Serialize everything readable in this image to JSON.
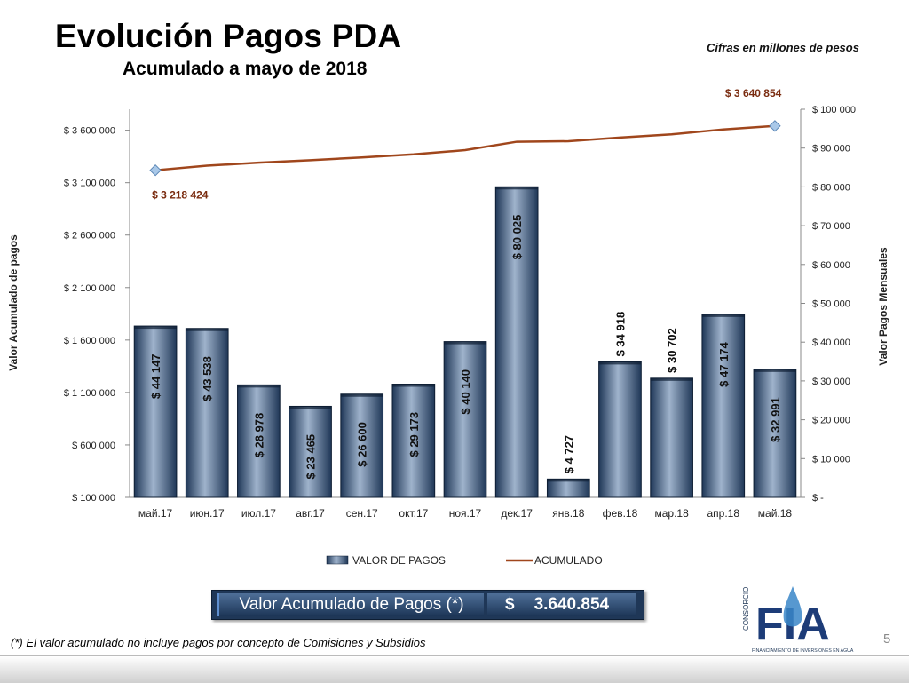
{
  "header": {
    "title": "Evolución Pagos PDA",
    "subtitle": "Acumulado a mayo de 2018",
    "units_note": "Cifras en millones de pesos"
  },
  "chart_data": {
    "type": "bar",
    "categories": [
      "май.17",
      "июн.17",
      "июл.17",
      "авг.17",
      "сен.17",
      "окт.17",
      "ноя.17",
      "дек.17",
      "янв.18",
      "фев.18",
      "мар.18",
      "апр.18",
      "май.18"
    ],
    "series": [
      {
        "name": "VALOR DE PAGOS",
        "type": "bar",
        "axis": "right",
        "values": [
          44147,
          43538,
          28978,
          23465,
          26600,
          29173,
          40140,
          80025,
          4727,
          34918,
          30702,
          47174,
          32991
        ],
        "labels": [
          "$ 44 147",
          "$ 43 538",
          "$ 28 978",
          "$ 23 465",
          "$ 26 600",
          "$ 29 173",
          "$ 40 140",
          "$ 80 025",
          "$ 4 727",
          "$ 34 918",
          "$ 30 702",
          "$ 47 174",
          "$ 32 991"
        ]
      },
      {
        "name": "ACUMULADO",
        "type": "line",
        "axis": "left",
        "values": [
          3218424,
          3261962,
          3290940,
          3314405,
          3341005,
          3370178,
          3410318,
          3490343,
          3495070,
          3529988,
          3560690,
          3607864,
          3640854
        ]
      }
    ],
    "left_axis": {
      "label": "Valor Acumulado de pagos",
      "range": [
        100000,
        3800000
      ],
      "ticks": [
        100000,
        600000,
        1100000,
        1600000,
        2100000,
        2600000,
        3100000,
        3600000
      ],
      "tick_labels": [
        "$ 100 000",
        "$ 600 000",
        "$ 1 100 000",
        "$ 1 600 000",
        "$ 2 100 000",
        "$ 2 600 000",
        "$ 3 100 000",
        "$ 3 600 000"
      ]
    },
    "right_axis": {
      "label": "Valor Pagos Mensuales",
      "range": [
        0,
        100000
      ],
      "ticks": [
        0,
        10000,
        20000,
        30000,
        40000,
        50000,
        60000,
        70000,
        80000,
        90000,
        100000
      ],
      "tick_labels": [
        "$ -",
        "$ 10 000",
        "$ 20 000",
        "$ 30 000",
        "$ 40 000",
        "$ 50 000",
        "$ 60 000",
        "$ 70 000",
        "$ 80 000",
        "$ 90 000",
        "$ 100 000"
      ]
    },
    "annotations": {
      "start": "$ 3 218 424",
      "end": "$ 3 640 854"
    },
    "legend": {
      "position": "bottom",
      "entries": [
        "VALOR DE PAGOS",
        "ACUMULADO"
      ]
    },
    "colors": {
      "bar_dark": "#1f3757",
      "bar_light": "#9fb3cc",
      "line": "#a0461c",
      "annotation": "#7a2c10"
    },
    "grid": false
  },
  "summary": {
    "label": "Valor Acumulado de Pagos (*)",
    "currency": "$",
    "value": "3.640.854"
  },
  "footnote": "(*) El valor acumulado no incluye  pagos por concepto de Comisiones y Subsidios",
  "page_number": "5",
  "logo": {
    "word": "CONSORCIO",
    "letters": "FIA",
    "tagline": "FINANCIAMIENTO DE INVERSIONES EN AGUA"
  }
}
